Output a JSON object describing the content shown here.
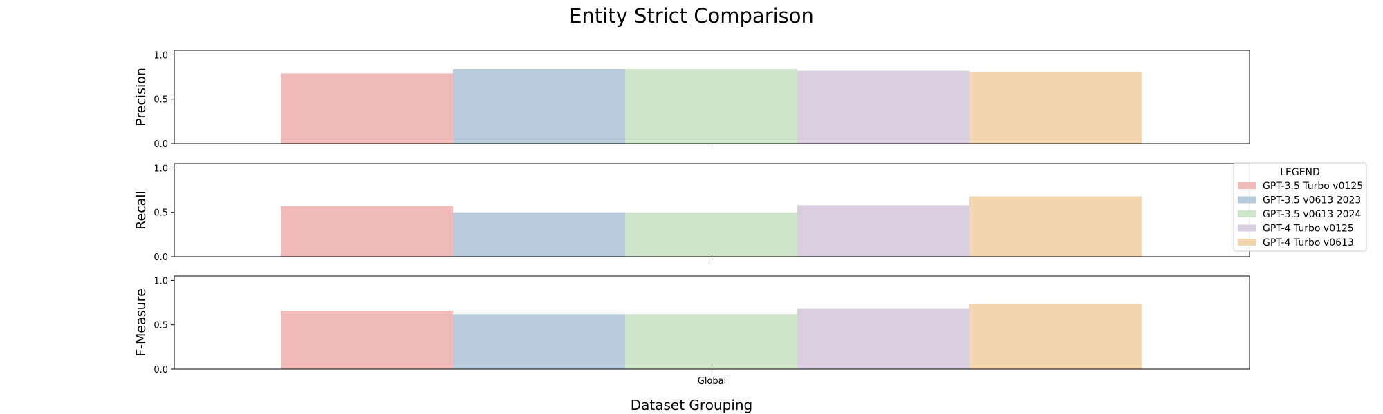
{
  "chart_data": {
    "type": "bar",
    "title": "Entity Strict Comparison",
    "xlabel": "Dataset Grouping",
    "categories": [
      "Global"
    ],
    "ylim": [
      0,
      1.05
    ],
    "yticks": [
      "0.0",
      "0.5",
      "1.0"
    ],
    "legend": {
      "title": "LEGEND",
      "placement": "right"
    },
    "series": [
      {
        "name": "GPT-3.5 Turbo v0125",
        "color": "#f0bab8"
      },
      {
        "name": "GPT-3.5 v0613 2023",
        "color": "#b8cbdd"
      },
      {
        "name": "GPT-3.5 v0613 2024",
        "color": "#cfe5ca"
      },
      {
        "name": "GPT-4 Turbo v0125",
        "color": "#dacee0"
      },
      {
        "name": "GPT-4 Turbo v0613",
        "color": "#f3d5ae"
      }
    ],
    "panels": [
      {
        "ylabel": "Precision",
        "values": [
          [
            0.79
          ],
          [
            0.84
          ],
          [
            0.84
          ],
          [
            0.82
          ],
          [
            0.81
          ]
        ]
      },
      {
        "ylabel": "Recall",
        "values": [
          [
            0.57
          ],
          [
            0.5
          ],
          [
            0.5
          ],
          [
            0.58
          ],
          [
            0.68
          ]
        ]
      },
      {
        "ylabel": "F-Measure",
        "values": [
          [
            0.66
          ],
          [
            0.62
          ],
          [
            0.62
          ],
          [
            0.68
          ],
          [
            0.74
          ]
        ]
      }
    ]
  }
}
